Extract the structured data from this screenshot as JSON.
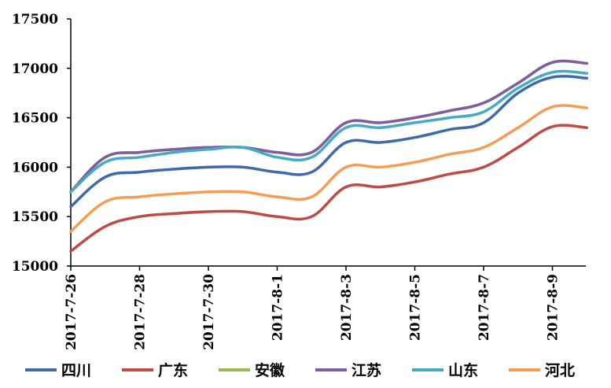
{
  "chart_data": {
    "type": "line",
    "title": "",
    "xlabel": "",
    "ylabel": "",
    "ylim": [
      15000,
      17500
    ],
    "y_ticks": [
      15000,
      15500,
      16000,
      16500,
      17000,
      17500
    ],
    "y_tick_labels": [
      "15000",
      "15500",
      "16000",
      "16500",
      "17000",
      "17500"
    ],
    "x": [
      "2017-7-26",
      "2017-7-27",
      "2017-7-28",
      "2017-7-29",
      "2017-7-30",
      "2017-7-31",
      "2017-8-1",
      "2017-8-2",
      "2017-8-3",
      "2017-8-4",
      "2017-8-5",
      "2017-8-6",
      "2017-8-7",
      "2017-8-8",
      "2017-8-9",
      "2017-8-10"
    ],
    "x_tick_labels": [
      "2017-7-26",
      "2017-7-28",
      "2017-7-30",
      "2017-8-1",
      "2017-8-3",
      "2017-8-5",
      "2017-8-7",
      "2017-8-9"
    ],
    "grid": false,
    "legend_position": "bottom",
    "series": [
      {
        "name": "四川",
        "color": "#3F69AA",
        "values": [
          15600,
          15900,
          15950,
          15980,
          16000,
          16000,
          15950,
          15950,
          16250,
          16250,
          16300,
          16380,
          16450,
          16750,
          16910,
          16900
        ]
      },
      {
        "name": "广东",
        "color": "#BE4B48",
        "values": [
          15150,
          15400,
          15500,
          15530,
          15550,
          15550,
          15500,
          15500,
          15800,
          15800,
          15850,
          15930,
          16000,
          16200,
          16410,
          16400
        ]
      },
      {
        "name": "安徽",
        "color": "#98B954",
        "values": [
          15750,
          16100,
          16150,
          16180,
          16200,
          16200,
          16150,
          16150,
          16450,
          16450,
          16500,
          16570,
          16650,
          16850,
          17060,
          17050
        ]
      },
      {
        "name": "江苏",
        "color": "#7D5FA0",
        "values": [
          15750,
          16100,
          16150,
          16180,
          16200,
          16200,
          16150,
          16150,
          16450,
          16450,
          16500,
          16570,
          16650,
          16850,
          17060,
          17050
        ]
      },
      {
        "name": "山东",
        "color": "#46AAC5",
        "values": [
          15750,
          16050,
          16100,
          16150,
          16180,
          16200,
          16100,
          16100,
          16400,
          16400,
          16450,
          16500,
          16560,
          16800,
          16960,
          16950
        ]
      },
      {
        "name": "河北",
        "color": "#F59D56",
        "values": [
          15350,
          15650,
          15700,
          15730,
          15750,
          15750,
          15700,
          15700,
          16000,
          16000,
          16050,
          16130,
          16200,
          16400,
          16610,
          16600
        ]
      }
    ]
  }
}
